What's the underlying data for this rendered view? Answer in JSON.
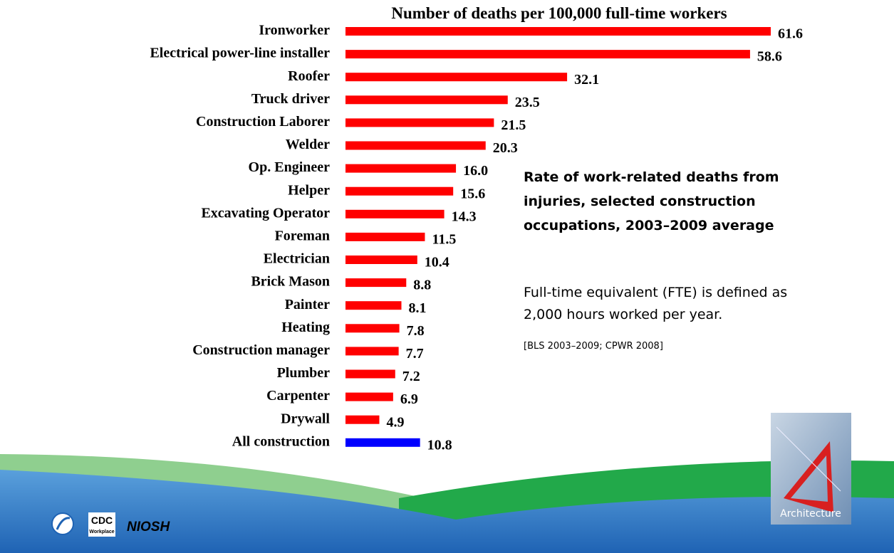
{
  "chart_data": {
    "type": "bar",
    "orientation": "horizontal",
    "title": "Number of deaths per 100,000 full-time workers",
    "categories": [
      "Ironworker",
      "Electrical power-line installer",
      "Roofer",
      "Truck driver",
      "Construction Laborer",
      "Welder",
      "Op. Engineer",
      "Helper",
      "Excavating Operator",
      "Foreman",
      "Electrician",
      "Brick Mason",
      "Painter",
      "Heating",
      "Construction manager",
      "Plumber",
      "Carpenter",
      "Drywall",
      "All construction"
    ],
    "values": [
      61.6,
      58.6,
      32.1,
      23.5,
      21.5,
      20.3,
      16.0,
      15.6,
      14.3,
      11.5,
      10.4,
      8.8,
      8.1,
      7.8,
      7.7,
      7.2,
      6.9,
      4.9,
      10.8
    ],
    "value_labels": [
      "61.6",
      "58.6",
      "32.1",
      "23.5",
      "21.5",
      "20.3",
      "16.0",
      "15.6",
      "14.3",
      "11.5",
      "10.4",
      "8.8",
      "8.1",
      "7.8",
      "7.7",
      "7.2",
      "6.9",
      "4.9",
      "10.8"
    ],
    "colors": [
      "#ff0000",
      "#ff0000",
      "#ff0000",
      "#ff0000",
      "#ff0000",
      "#ff0000",
      "#ff0000",
      "#ff0000",
      "#ff0000",
      "#ff0000",
      "#ff0000",
      "#ff0000",
      "#ff0000",
      "#ff0000",
      "#ff0000",
      "#ff0000",
      "#ff0000",
      "#ff0000",
      "#0000ff"
    ],
    "annotation": [
      "Rate of work-related deaths from",
      "injuries, selected construction",
      "occupations, 2003–2009 average"
    ],
    "note": [
      "Full-time equivalent (FTE) is defined as",
      "2,000 hours worked per year."
    ],
    "source": "[BLS 2003–2009; CPWR 2008]"
  },
  "footer": {
    "logos": [
      "CDC",
      "Workplace",
      "NIOSH"
    ],
    "image_caption": "Architecture"
  }
}
